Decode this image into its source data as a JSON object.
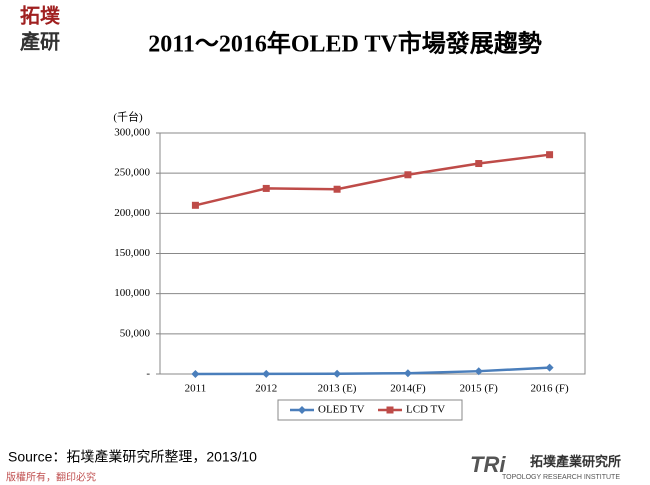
{
  "logo": {
    "line1": "拓墣",
    "line2": "產研"
  },
  "chart_data": {
    "type": "line",
    "title": "2011～2016年OLED TV市場發展趨勢",
    "y_unit": "(千台)",
    "categories": [
      "2011",
      "2012",
      "2013 (E)",
      "2014(F)",
      "2015 (F)",
      "2016 (F)"
    ],
    "series": [
      {
        "name": "OLED TV",
        "color": "#4a7ebb",
        "marker": "diamond",
        "values": [
          0,
          100,
          300,
          1000,
          3500,
          8000
        ]
      },
      {
        "name": "LCD TV",
        "color": "#be4b48",
        "marker": "square",
        "values": [
          210000,
          231000,
          230000,
          248000,
          262000,
          273000
        ]
      }
    ],
    "ylim": [
      0,
      300000
    ],
    "yticks": [
      {
        "value": 0,
        "label": "-"
      },
      {
        "value": 50000,
        "label": "50,000"
      },
      {
        "value": 100000,
        "label": "100,000"
      },
      {
        "value": 150000,
        "label": "150,000"
      },
      {
        "value": 200000,
        "label": "200,000"
      },
      {
        "value": 250000,
        "label": "250,000"
      },
      {
        "value": 300000,
        "label": "300,000"
      }
    ],
    "grid": true,
    "legend": "bottom"
  },
  "source": "Source：拓墣產業研究所整理，2013/10",
  "footer": "版權所有，翻印必究",
  "brand": {
    "mark": "TRi",
    "name": "拓墣產業研究所",
    "english": "TOPOLOGY RESEARCH INSTITUTE"
  }
}
